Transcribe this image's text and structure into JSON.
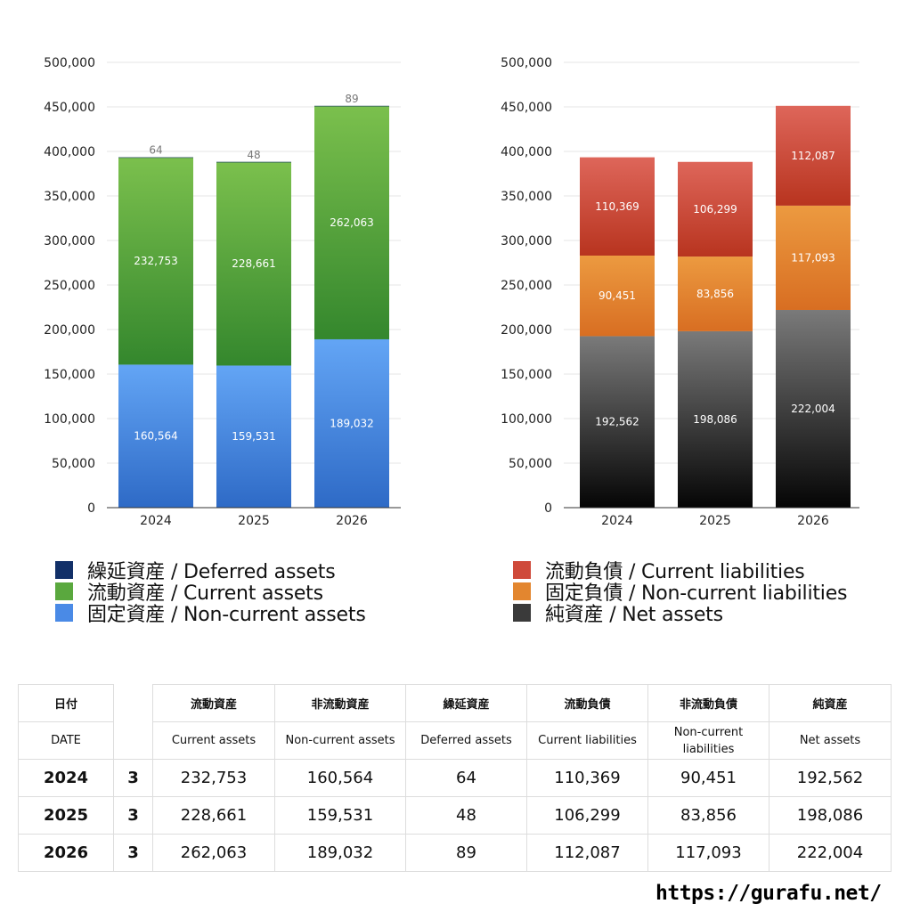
{
  "chart_data": [
    {
      "type": "bar",
      "stacked": true,
      "categories": [
        "2024",
        "2025",
        "2026"
      ],
      "ylim": [
        0,
        500000
      ],
      "yticks": [
        "0",
        "50,000",
        "100,000",
        "150,000",
        "200,000",
        "250,000",
        "300,000",
        "350,000",
        "400,000",
        "450,000",
        "500,000"
      ],
      "grid": true,
      "series": [
        {
          "name": "固定資産 / Non-current assets",
          "values": [
            160564,
            159531,
            189032
          ],
          "labels": [
            "160,564",
            "159,531",
            "189,032"
          ],
          "color_top": "#63a5f5",
          "color_bottom": "#2e6ac6"
        },
        {
          "name": "流動資産 / Current assets",
          "values": [
            232753,
            228661,
            262063
          ],
          "labels": [
            "232,753",
            "228,661",
            "262,063"
          ],
          "color_top": "#7bc04d",
          "color_bottom": "#34872d"
        },
        {
          "name": "繰延資産 / Deferred assets",
          "values": [
            64,
            48,
            89
          ],
          "labels": [
            "64",
            "48",
            "89"
          ],
          "color_top": "#123068",
          "color_bottom": "#123068"
        }
      ]
    },
    {
      "type": "bar",
      "stacked": true,
      "categories": [
        "2024",
        "2025",
        "2026"
      ],
      "ylim": [
        0,
        500000
      ],
      "yticks": [
        "0",
        "50,000",
        "100,000",
        "150,000",
        "200,000",
        "250,000",
        "300,000",
        "350,000",
        "400,000",
        "450,000",
        "500,000"
      ],
      "grid": true,
      "series": [
        {
          "name": "純資産 / Net assets",
          "values": [
            192562,
            198086,
            222004
          ],
          "labels": [
            "192,562",
            "198,086",
            "222,004"
          ],
          "color_top": "#7a7a7a",
          "color_bottom": "#050505"
        },
        {
          "name": "固定負債 / Non-current liabilities",
          "values": [
            90451,
            83856,
            117093
          ],
          "labels": [
            "90,451",
            "83,856",
            "117,093"
          ],
          "color_top": "#ec9a40",
          "color_bottom": "#d86e22"
        },
        {
          "name": "流動負債 / Current liabilities",
          "values": [
            110369,
            106299,
            112087
          ],
          "labels": [
            "110,369",
            "106,299",
            "112,087"
          ],
          "color_top": "#de665a",
          "color_bottom": "#b8341f"
        }
      ]
    }
  ],
  "legend_left": [
    {
      "label": "繰延資産 / Deferred assets",
      "color": "#123068"
    },
    {
      "label": "流動資産 / Current assets",
      "color": "#5aa83e"
    },
    {
      "label": "固定資産 / Non-current assets",
      "color": "#4a8ae6"
    }
  ],
  "legend_right": [
    {
      "label": "流動負債 / Current liabilities",
      "color": "#cf4a3a"
    },
    {
      "label": "固定負債 / Non-current liabilities",
      "color": "#e3862f"
    },
    {
      "label": "純資産 / Net assets",
      "color": "#3a3a3a"
    }
  ],
  "table": {
    "header_jp": [
      "日付",
      "",
      "流動資産",
      "非流動資産",
      "繰延資産",
      "流動負債",
      "非流動負債",
      "純資産"
    ],
    "header_en": [
      "DATE",
      "",
      "Current assets",
      "Non-current assets",
      "Deferred assets",
      "Current liabilities",
      "Non-current liabilities",
      "Net assets"
    ],
    "rows": [
      {
        "year": "2024",
        "month": "3",
        "values": [
          "232,753",
          "160,564",
          "64",
          "110,369",
          "90,451",
          "192,562"
        ]
      },
      {
        "year": "2025",
        "month": "3",
        "values": [
          "228,661",
          "159,531",
          "48",
          "106,299",
          "83,856",
          "198,086"
        ]
      },
      {
        "year": "2026",
        "month": "3",
        "values": [
          "262,063",
          "189,032",
          "89",
          "112,087",
          "117,093",
          "222,004"
        ]
      }
    ]
  },
  "footer": {
    "url": "https://gurafu.net/"
  }
}
